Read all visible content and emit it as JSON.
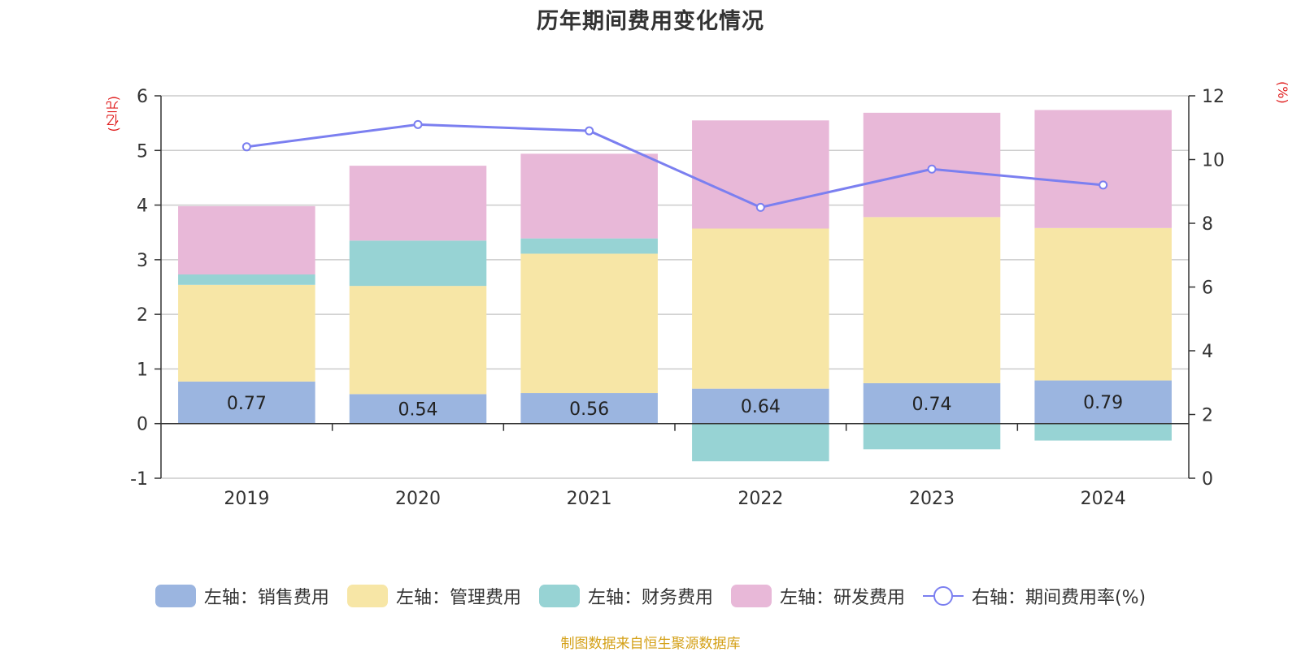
{
  "title": "历年期间费用变化情况",
  "left_unit": "(亿元)",
  "right_unit": "(%)",
  "source": "制图数据来自恒生聚源数据库",
  "colors": {
    "sales": "#9bb5e0",
    "admin": "#f7e6a6",
    "finance": "#97d3d4",
    "rd": "#e8b8d8",
    "rate": "#7b7ff0",
    "unit": "#e02020"
  },
  "legend": [
    {
      "label": "左轴：销售费用",
      "color": "#9bb5e0",
      "icon": "bar-swatch"
    },
    {
      "label": "左轴：管理费用",
      "color": "#f7e6a6",
      "icon": "bar-swatch"
    },
    {
      "label": "左轴：财务费用",
      "color": "#97d3d4",
      "icon": "bar-swatch"
    },
    {
      "label": "左轴：研发费用",
      "color": "#e8b8d8",
      "icon": "bar-swatch"
    },
    {
      "label": "右轴：期间费用率(%)",
      "color": "#7b7ff0",
      "icon": "line-circle-marker"
    }
  ],
  "chart_data": {
    "type": "bar",
    "stacked": true,
    "categories": [
      "2019",
      "2020",
      "2021",
      "2022",
      "2023",
      "2024"
    ],
    "left_axis": {
      "ylim": [
        -1,
        6
      ],
      "ticks": [
        "-1",
        "0",
        "1",
        "2",
        "3",
        "4",
        "5",
        "6"
      ]
    },
    "right_axis": {
      "ylim": [
        0,
        12
      ],
      "ticks": [
        "0",
        "2",
        "4",
        "6",
        "8",
        "10",
        "12"
      ]
    },
    "grid": true,
    "legend_position": "bottom",
    "series": [
      {
        "name": "左轴：销售费用",
        "axis": "left",
        "values": [
          0.77,
          0.54,
          0.56,
          0.64,
          0.74,
          0.79
        ],
        "labels": [
          "0.77",
          "0.54",
          "0.56",
          "0.64",
          "0.74",
          "0.79"
        ]
      },
      {
        "name": "左轴：管理费用",
        "axis": "left",
        "values": [
          1.77,
          1.98,
          2.55,
          2.93,
          3.04,
          2.79
        ]
      },
      {
        "name": "左轴：财务费用",
        "axis": "left",
        "values": [
          0.19,
          0.83,
          0.28,
          -0.69,
          -0.47,
          -0.31
        ]
      },
      {
        "name": "左轴：研发费用",
        "axis": "left",
        "values": [
          1.25,
          1.37,
          1.55,
          1.98,
          1.91,
          2.16
        ]
      },
      {
        "name": "右轴：期间费用率(%)",
        "axis": "right",
        "type": "line",
        "values": [
          10.4,
          11.1,
          10.9,
          8.5,
          9.7,
          9.2
        ]
      }
    ]
  }
}
